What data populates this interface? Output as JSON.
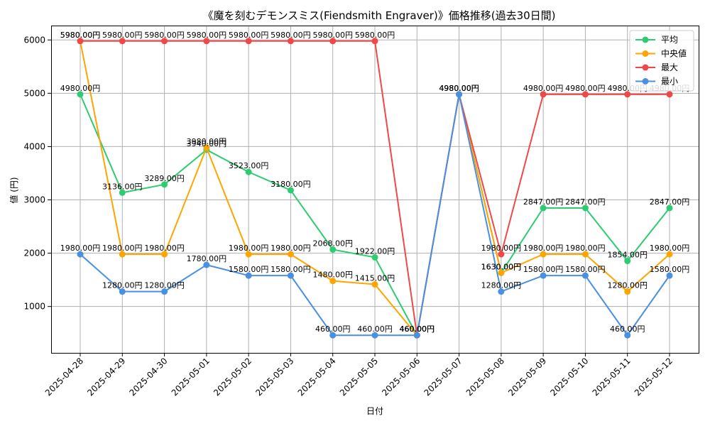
{
  "chart_data": {
    "type": "line",
    "title": "《魔を刻むデモンスミス(Fiendsmith Engraver)》価格推移(過去30日間)",
    "xlabel": "日付",
    "ylabel": "値 (円)",
    "ylim": [
      130,
      6270
    ],
    "yticks": [
      1000,
      2000,
      3000,
      4000,
      5000,
      6000
    ],
    "value_suffix": "円",
    "grid": true,
    "legend_position": "top-right",
    "categories": [
      "2025-04-28",
      "2025-04-29",
      "2025-04-30",
      "2025-05-01",
      "2025-05-02",
      "2025-05-03",
      "2025-05-04",
      "2025-05-05",
      "2025-05-06",
      "2025-05-07",
      "2025-05-08",
      "2025-05-09",
      "2025-05-10",
      "2025-05-11",
      "2025-05-12"
    ],
    "series": [
      {
        "name": "平均",
        "color": "#2ecc71",
        "values": [
          4980,
          3136,
          3289,
          3940,
          3523,
          3180,
          2068,
          1922,
          460,
          4980,
          1630,
          2847,
          2847,
          1854,
          2847
        ]
      },
      {
        "name": "中央値",
        "color": "#ffa500",
        "values": [
          5980,
          1980,
          1980,
          3980,
          1980,
          1980,
          1480,
          1415,
          460,
          4980,
          1630,
          1980,
          1980,
          1280,
          1980
        ]
      },
      {
        "name": "最大",
        "color": "#f04848",
        "values": [
          5980,
          5980,
          5980,
          5980,
          5980,
          5980,
          5980,
          5980,
          460,
          4980,
          1980,
          4980,
          4980,
          4980,
          4980
        ]
      },
      {
        "name": "最小",
        "color": "#4a90e2",
        "values": [
          1980,
          1280,
          1280,
          1780,
          1580,
          1580,
          460,
          460,
          460,
          4980,
          1280,
          1580,
          1580,
          460,
          1580
        ]
      }
    ]
  }
}
